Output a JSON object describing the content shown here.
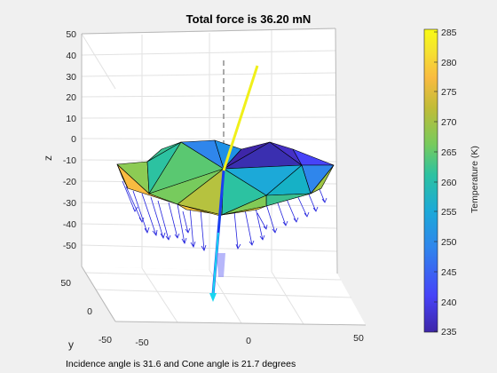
{
  "title": "Total force is 36.20 mN",
  "caption": "Incidence angle is 31.6 and Cone angle is 21.7 degrees",
  "axes": {
    "zlabel": "z",
    "ylabel": "y",
    "z_ticks": [
      "50",
      "40",
      "30",
      "20",
      "10",
      "0",
      "-10",
      "-20",
      "-30",
      "-40",
      "-50"
    ],
    "x_ticks": [
      "-50",
      "0",
      "50"
    ],
    "y_ticks": [
      "50",
      "0",
      "-50"
    ]
  },
  "colorbar": {
    "label": "Temperature (K)",
    "ticks": [
      "285",
      "280",
      "275",
      "270",
      "265",
      "260",
      "255",
      "250",
      "245",
      "240",
      "235"
    ],
    "colors": [
      "#3e26a8",
      "#4743f8",
      "#2f86ec",
      "#1ca9d8",
      "#2cc2a1",
      "#77cb5d",
      "#c0bc37",
      "#f9bb41",
      "#f5e330",
      "#f9fb14"
    ]
  },
  "chart_data": {
    "type": "surface",
    "title": "Total force is 36.20 mN",
    "zlabel": "z",
    "ylabel": "y",
    "colorbar_label": "Temperature (K)",
    "zlim": [
      -50,
      50
    ],
    "xlim": [
      -50,
      50
    ],
    "ylim": [
      -50,
      50
    ],
    "clim": [
      235,
      285
    ],
    "grid": true
  }
}
